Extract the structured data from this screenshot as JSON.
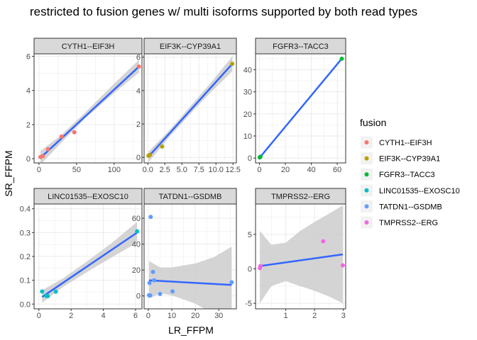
{
  "chart_data": {
    "type": "scatter",
    "title": "restricted to fusion genes w/ multi isoforms supported by both read types",
    "xlabel": "LR_FFPM",
    "ylabel": "SR_FFPM",
    "legend": {
      "title": "fusion",
      "placement": "right",
      "entries": [
        {
          "name": "CYTH1--EIF3H",
          "color": "#F8766D"
        },
        {
          "name": "EIF3K--CYP39A1",
          "color": "#B79F00"
        },
        {
          "name": "FGFR3--TACC3",
          "color": "#00BA38"
        },
        {
          "name": "LINC01535--EXOSC10",
          "color": "#00BFC4"
        },
        {
          "name": "TATDN1--GSDMB",
          "color": "#619CFF"
        },
        {
          "name": "TMPRSS2--ERG",
          "color": "#F564E3"
        }
      ]
    },
    "fit_line_color": "#3366FF",
    "ribbon_color": "#CCCCCC",
    "grid": true,
    "panels": [
      {
        "name": "CYTH1--EIF3H",
        "color": "#F8766D",
        "xlim": [
          -6.5,
          137
        ],
        "ylim": [
          -0.25,
          6.15
        ],
        "xticks": [
          0,
          50,
          100
        ],
        "yticks": [
          0,
          2,
          4,
          6
        ],
        "points": [
          [
            2,
            0.1
          ],
          [
            5,
            0.15
          ],
          [
            12,
            0.55
          ],
          [
            30,
            1.3
          ],
          [
            47,
            1.55
          ],
          [
            133,
            5.4
          ]
        ],
        "fit": [
          [
            2,
            0.05
          ],
          [
            133,
            5.4
          ]
        ],
        "band": [
          [
            2,
            -0.35,
            0.45
          ],
          [
            30,
            0.95,
            1.4
          ],
          [
            60,
            2.3,
            2.65
          ],
          [
            100,
            3.85,
            4.4
          ],
          [
            133,
            5.05,
            5.8
          ]
        ]
      },
      {
        "name": "EIF3K--CYP39A1",
        "color": "#B79F00",
        "xlim": [
          -0.55,
          13.0
        ],
        "ylim": [
          -0.33,
          6.2
        ],
        "xticks": [
          0,
          2.5,
          5,
          7.5,
          10,
          12.5
        ],
        "xtick_labels": [
          "0.0",
          "2.5",
          "5.0",
          "7.5",
          "10.0",
          "12.5"
        ],
        "yticks": [
          0,
          2,
          4,
          6
        ],
        "points": [
          [
            0.1,
            0.1
          ],
          [
            0.3,
            0.15
          ],
          [
            2.1,
            0.65
          ],
          [
            12.4,
            5.6
          ]
        ],
        "fit": [
          [
            0.1,
            0.05
          ],
          [
            12.4,
            5.6
          ]
        ],
        "band": [
          [
            0.1,
            -0.3,
            0.35
          ],
          [
            3,
            1.15,
            1.55
          ],
          [
            6,
            2.5,
            2.95
          ],
          [
            9,
            3.8,
            4.35
          ],
          [
            12.4,
            5.15,
            6.05
          ]
        ]
      },
      {
        "name": "FGFR3--TACC3",
        "color": "#00BA38",
        "xlim": [
          -3.0,
          66.5
        ],
        "ylim": [
          -2.2,
          47.2
        ],
        "xticks": [
          0,
          20,
          40,
          60
        ],
        "yticks": [
          0,
          10,
          20,
          30,
          40
        ],
        "points": [
          [
            0.2,
            0.3
          ],
          [
            0.5,
            0.5
          ],
          [
            0.8,
            0.6
          ],
          [
            63.5,
            45
          ]
        ],
        "fit": [
          [
            0.2,
            0.2
          ],
          [
            63.5,
            45
          ]
        ],
        "band": [
          [
            0.2,
            0.0,
            0.4
          ],
          [
            63.5,
            44.8,
            45.2
          ]
        ]
      },
      {
        "name": "LINC01535--EXOSC10",
        "color": "#00BFC4",
        "xlim": [
          -0.3,
          6.4
        ],
        "ylim": [
          -0.02,
          0.42
        ],
        "xticks": [
          0,
          2,
          4,
          6
        ],
        "yticks": [
          0.0,
          0.1,
          0.2,
          0.3,
          0.4
        ],
        "ytick_labels": [
          "0.0",
          "0.1",
          "0.2",
          "0.3",
          "0.4"
        ],
        "points": [
          [
            0.2,
            0.053
          ],
          [
            0.45,
            0.035
          ],
          [
            0.55,
            0.033
          ],
          [
            1.05,
            0.052
          ],
          [
            6.1,
            0.305
          ]
        ],
        "fit": [
          [
            0.2,
            0.03
          ],
          [
            6.1,
            0.3
          ]
        ],
        "band": [
          [
            0.2,
            0.005,
            0.058
          ],
          [
            1.5,
            0.072,
            0.108
          ],
          [
            3,
            0.135,
            0.18
          ],
          [
            4.5,
            0.195,
            0.255
          ],
          [
            6.1,
            0.258,
            0.345
          ]
        ]
      },
      {
        "name": "TATDN1--GSDMB",
        "color": "#619CFF",
        "xlim": [
          -1.8,
          37.5
        ],
        "ylim": [
          -10,
          71
        ],
        "xticks": [
          0,
          10,
          20,
          30
        ],
        "yticks": [
          0,
          20,
          40,
          60
        ],
        "points": [
          [
            0.3,
            0.5
          ],
          [
            0.5,
            10
          ],
          [
            0.8,
            0.3
          ],
          [
            1.0,
            61
          ],
          [
            2.0,
            18.5
          ],
          [
            2.5,
            12
          ],
          [
            5.0,
            1.5
          ],
          [
            10.3,
            3.5
          ],
          [
            35.5,
            10.5
          ]
        ],
        "fit": [
          [
            0.3,
            12
          ],
          [
            35.5,
            8.5
          ]
        ],
        "band": [
          [
            0.3,
            -2,
            27
          ],
          [
            5,
            2,
            22
          ],
          [
            10,
            0.5,
            22
          ],
          [
            20,
            -6,
            25
          ],
          [
            28,
            -14,
            30
          ],
          [
            35.5,
            -22,
            38
          ]
        ]
      },
      {
        "name": "TMPRSS2--ERG",
        "color": "#F564E3",
        "xlim": [
          -0.05,
          3.08
        ],
        "ylim": [
          -5.8,
          9.4
        ],
        "xticks": [
          1,
          2,
          3
        ],
        "yticks": [
          -5,
          0,
          5
        ],
        "points": [
          [
            0.1,
            0.1
          ],
          [
            0.12,
            0.4
          ],
          [
            2.3,
            4.0
          ],
          [
            2.98,
            0.5
          ]
        ],
        "fit": [
          [
            0.1,
            0.4
          ],
          [
            2.98,
            2.1
          ]
        ],
        "band": [
          [
            0.1,
            -5.0,
            5.5
          ],
          [
            0.5,
            -2.5,
            3.5
          ],
          [
            1.0,
            -1.8,
            3.8
          ],
          [
            1.5,
            -2.5,
            5.5
          ],
          [
            2.0,
            -3.2,
            6.8
          ],
          [
            2.5,
            -4.0,
            8.0
          ],
          [
            2.98,
            -5.0,
            9.2
          ]
        ]
      }
    ]
  }
}
